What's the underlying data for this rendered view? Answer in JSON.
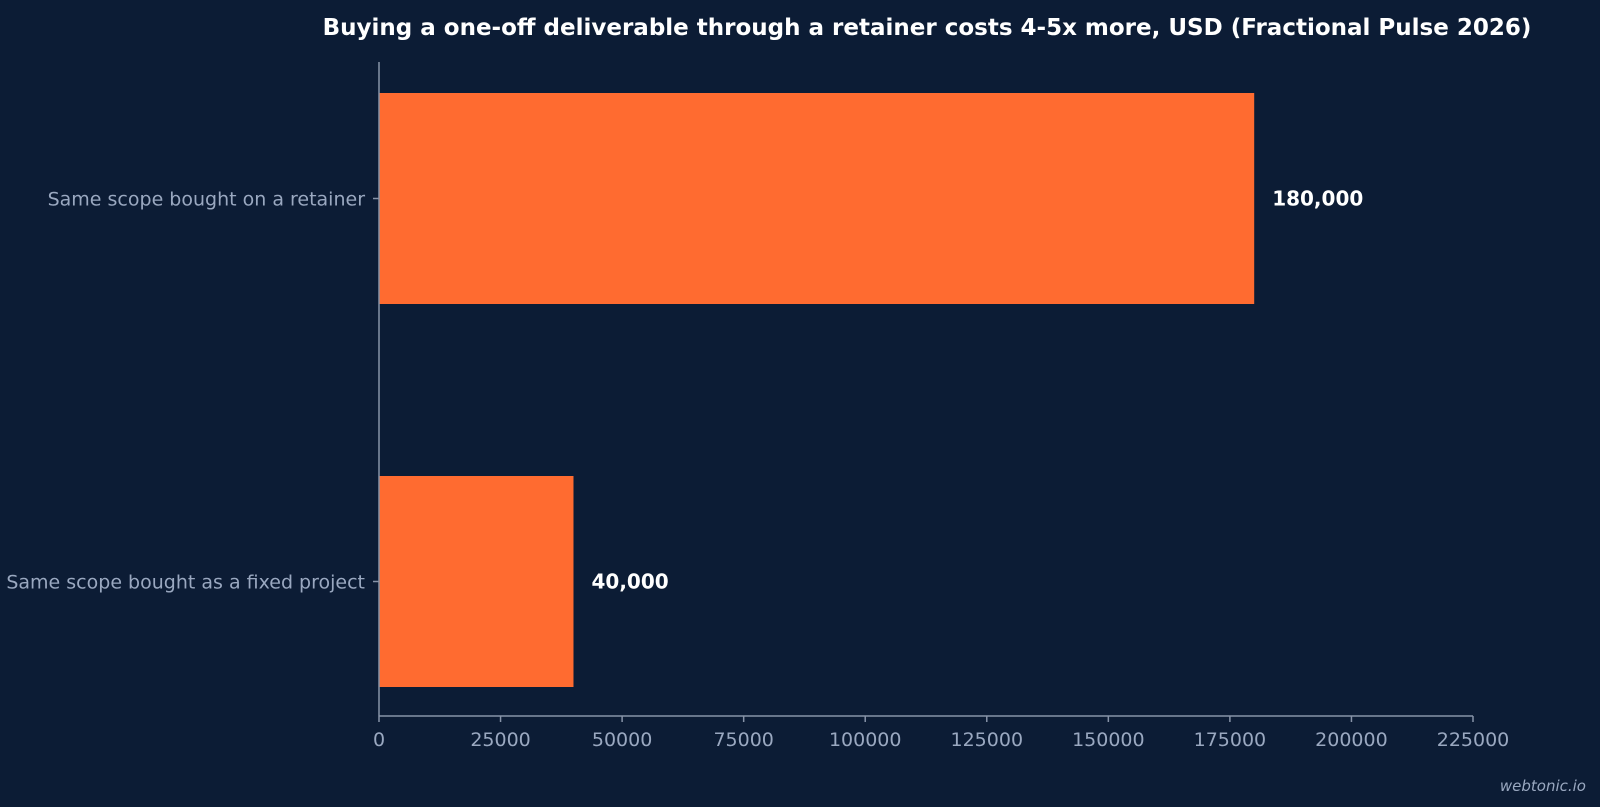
{
  "chart_data": {
    "type": "bar",
    "orientation": "horizontal",
    "title": "Buying a one-off deliverable through a retainer costs 4-5x more, USD (Fractional Pulse 2026)",
    "categories": [
      "Same scope bought on a retainer",
      "Same scope bought as a fixed project"
    ],
    "values": [
      180000,
      40000
    ],
    "value_labels": [
      "180,000",
      "40,000"
    ],
    "xlim": [
      0,
      225000
    ],
    "xticks": [
      0,
      25000,
      50000,
      75000,
      100000,
      125000,
      150000,
      175000,
      200000,
      225000
    ],
    "xtick_labels": [
      "0",
      "25000",
      "50000",
      "75000",
      "100000",
      "125000",
      "150000",
      "175000",
      "200000",
      "225000"
    ],
    "xlabel": "",
    "ylabel": "",
    "grid": false,
    "legend": "none",
    "bar_color": "#ff6b30",
    "background": "#0c1c35"
  },
  "watermark": "webtonic.io"
}
